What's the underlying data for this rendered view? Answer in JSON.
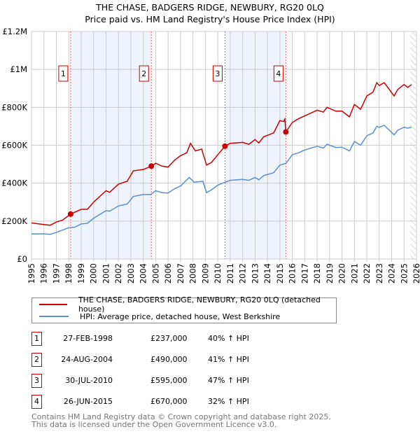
{
  "title": "THE CHASE, BADGERS RIDGE, NEWBURY, RG20 0LQ",
  "subtitle": "Price paid vs. HM Land Registry's House Price Index (HPI)",
  "chart_data": {
    "type": "line",
    "xlim": [
      1995,
      2026
    ],
    "ylim": [
      0,
      1200000
    ],
    "y_ticks": [
      {
        "v": 0,
        "label": "£0"
      },
      {
        "v": 200000,
        "label": "£200K"
      },
      {
        "v": 400000,
        "label": "£400K"
      },
      {
        "v": 600000,
        "label": "£600K"
      },
      {
        "v": 800000,
        "label": "£800K"
      },
      {
        "v": 1000000,
        "label": "£1M"
      },
      {
        "v": 1200000,
        "label": "£1.2M"
      }
    ],
    "x_ticks": [
      "1995",
      "1996",
      "1997",
      "1998",
      "1999",
      "2000",
      "2001",
      "2002",
      "2003",
      "2004",
      "2005",
      "2006",
      "2007",
      "2008",
      "2009",
      "2010",
      "2011",
      "2012",
      "2013",
      "2014",
      "2015",
      "2016",
      "2017",
      "2018",
      "2019",
      "2020",
      "2021",
      "2022",
      "2023",
      "2024",
      "2025",
      "2026"
    ],
    "grid": true,
    "series": [
      {
        "name": "THE CHASE, BADGERS RIDGE, NEWBURY, RG20 0LQ (detached house)",
        "color": "#cc0000",
        "points": [
          [
            1995,
            190
          ],
          [
            1996,
            182
          ],
          [
            1996.5,
            178
          ],
          [
            1997,
            195
          ],
          [
            1997.5,
            205
          ],
          [
            1998.15,
            237
          ],
          [
            1999,
            262
          ],
          [
            1999.5,
            262
          ],
          [
            2000,
            300
          ],
          [
            2001,
            360
          ],
          [
            2001.3,
            352
          ],
          [
            2002,
            395
          ],
          [
            2002.7,
            410
          ],
          [
            2003.2,
            465
          ],
          [
            2004,
            472
          ],
          [
            2004.65,
            490
          ],
          [
            2005,
            505
          ],
          [
            2005.5,
            490
          ],
          [
            2006,
            485
          ],
          [
            2006.5,
            520
          ],
          [
            2007,
            545
          ],
          [
            2007.5,
            560
          ],
          [
            2007.8,
            610
          ],
          [
            2008.2,
            570
          ],
          [
            2008.7,
            580
          ],
          [
            2009.1,
            495
          ],
          [
            2009.5,
            510
          ],
          [
            2010,
            550
          ],
          [
            2010.58,
            595
          ],
          [
            2011,
            610
          ],
          [
            2012,
            615
          ],
          [
            2012.5,
            605
          ],
          [
            2013,
            630
          ],
          [
            2013.3,
            612
          ],
          [
            2013.7,
            645
          ],
          [
            2014.5,
            665
          ],
          [
            2015,
            730
          ],
          [
            2015.3,
            725
          ],
          [
            2015.4,
            738
          ],
          [
            2015.48,
            670
          ],
          [
            2016,
            720
          ],
          [
            2016.5,
            740
          ],
          [
            2017,
            755
          ],
          [
            2018,
            785
          ],
          [
            2018.5,
            775
          ],
          [
            2018.8,
            800
          ],
          [
            2019.5,
            780
          ],
          [
            2020,
            780
          ],
          [
            2020.6,
            750
          ],
          [
            2021,
            815
          ],
          [
            2021.5,
            790
          ],
          [
            2022,
            860
          ],
          [
            2022.5,
            880
          ],
          [
            2022.8,
            930
          ],
          [
            2023,
            915
          ],
          [
            2023.4,
            930
          ],
          [
            2023.8,
            895
          ],
          [
            2024.2,
            860
          ],
          [
            2024.5,
            895
          ],
          [
            2025,
            920
          ],
          [
            2025.3,
            905
          ],
          [
            2025.6,
            920
          ]
        ]
      },
      {
        "name": "HPI: Average price, detached house, West Berkshire",
        "color": "#5b8fd0",
        "points": [
          [
            1995,
            132
          ],
          [
            1996,
            133
          ],
          [
            1996.5,
            130
          ],
          [
            1997,
            140
          ],
          [
            1998,
            165
          ],
          [
            1998.5,
            168
          ],
          [
            1999,
            185
          ],
          [
            1999.5,
            188
          ],
          [
            2000,
            215
          ],
          [
            2001,
            255
          ],
          [
            2001.3,
            252
          ],
          [
            2002,
            280
          ],
          [
            2002.7,
            290
          ],
          [
            2003.2,
            330
          ],
          [
            2004,
            340
          ],
          [
            2004.6,
            340
          ],
          [
            2005,
            360
          ],
          [
            2005.5,
            350
          ],
          [
            2006,
            348
          ],
          [
            2006.5,
            370
          ],
          [
            2007,
            385
          ],
          [
            2007.7,
            430
          ],
          [
            2008.1,
            405
          ],
          [
            2008.8,
            410
          ],
          [
            2009.1,
            350
          ],
          [
            2009.5,
            365
          ],
          [
            2010,
            390
          ],
          [
            2010.6,
            405
          ],
          [
            2011,
            415
          ],
          [
            2012,
            420
          ],
          [
            2012.5,
            415
          ],
          [
            2013,
            430
          ],
          [
            2013.3,
            418
          ],
          [
            2013.7,
            440
          ],
          [
            2014.5,
            455
          ],
          [
            2015,
            495
          ],
          [
            2015.5,
            505
          ],
          [
            2016,
            550
          ],
          [
            2016.5,
            560
          ],
          [
            2017,
            575
          ],
          [
            2018,
            595
          ],
          [
            2018.5,
            585
          ],
          [
            2018.8,
            605
          ],
          [
            2019.5,
            588
          ],
          [
            2020,
            590
          ],
          [
            2020.6,
            570
          ],
          [
            2021,
            620
          ],
          [
            2021.5,
            600
          ],
          [
            2022,
            650
          ],
          [
            2022.5,
            665
          ],
          [
            2022.8,
            700
          ],
          [
            2023,
            695
          ],
          [
            2023.4,
            705
          ],
          [
            2023.8,
            680
          ],
          [
            2024.2,
            655
          ],
          [
            2024.5,
            680
          ],
          [
            2025,
            695
          ],
          [
            2025.3,
            690
          ],
          [
            2025.6,
            695
          ]
        ]
      }
    ],
    "value_unit": "thousands GBP",
    "sales": [
      {
        "id": "1",
        "x": 1998.15,
        "value": 237
      },
      {
        "id": "2",
        "x": 2004.65,
        "value": 490
      },
      {
        "id": "3",
        "x": 2010.58,
        "value": 595
      },
      {
        "id": "4",
        "x": 2015.48,
        "value": 670
      }
    ],
    "shaded_ranges": [
      [
        1998.15,
        2004.65
      ],
      [
        2010.58,
        2015.48
      ]
    ],
    "forecast_hatch_from": 2025.5,
    "legend_position": "below"
  },
  "legend": [
    "THE CHASE, BADGERS RIDGE, NEWBURY, RG20 0LQ (detached house)",
    "HPI: Average price, detached house, West Berkshire"
  ],
  "transactions": [
    {
      "id": "1",
      "date": "27-FEB-1998",
      "price": "£237,000",
      "hpi": "40% ↑ HPI"
    },
    {
      "id": "2",
      "date": "24-AUG-2004",
      "price": "£490,000",
      "hpi": "41% ↑ HPI"
    },
    {
      "id": "3",
      "date": "30-JUL-2010",
      "price": "£595,000",
      "hpi": "47% ↑ HPI"
    },
    {
      "id": "4",
      "date": "26-JUN-2015",
      "price": "£670,000",
      "hpi": "32% ↑ HPI"
    }
  ],
  "footer": [
    "Contains HM Land Registry data © Crown copyright and database right 2025.",
    "This data is licensed under the Open Government Licence v3.0."
  ]
}
